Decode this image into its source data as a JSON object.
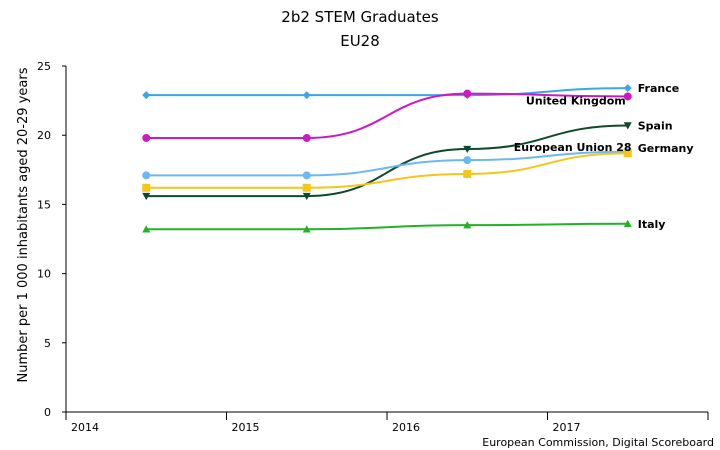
{
  "chart_data": {
    "type": "line",
    "title": "2b2 STEM Graduates",
    "subtitle": "EU28",
    "ylabel": "Number per 1 000 inhabitants aged 20-29 years",
    "xlabel": "",
    "source": "European Commission, Digital Scoreboard",
    "categories": [
      "2014",
      "2015",
      "2016",
      "2017"
    ],
    "ylim": [
      0,
      25
    ],
    "yticks": [
      "0",
      "5",
      "10",
      "15",
      "20",
      "25"
    ],
    "grid": false,
    "series": [
      {
        "name": "France",
        "color": "#3aa7e8",
        "marker": "diamond",
        "values": [
          22.9,
          22.9,
          22.9,
          23.4
        ]
      },
      {
        "name": "United Kingdom",
        "color": "#cc19c4",
        "marker": "circle",
        "values": [
          19.8,
          19.8,
          23.0,
          22.8
        ]
      },
      {
        "name": "Spain",
        "color": "#0d4a2c",
        "marker": "triangle-down",
        "values": [
          15.6,
          15.6,
          19.0,
          20.7
        ]
      },
      {
        "name": "European Union 28",
        "color": "#6db8f2",
        "marker": "circle",
        "values": [
          17.1,
          17.1,
          18.2,
          18.8
        ]
      },
      {
        "name": "Germany",
        "color": "#f5c518",
        "marker": "square",
        "values": [
          16.2,
          16.2,
          17.2,
          18.7
        ]
      },
      {
        "name": "Italy",
        "color": "#22b322",
        "marker": "triangle-up",
        "values": [
          13.2,
          13.2,
          13.5,
          13.6
        ]
      }
    ]
  }
}
